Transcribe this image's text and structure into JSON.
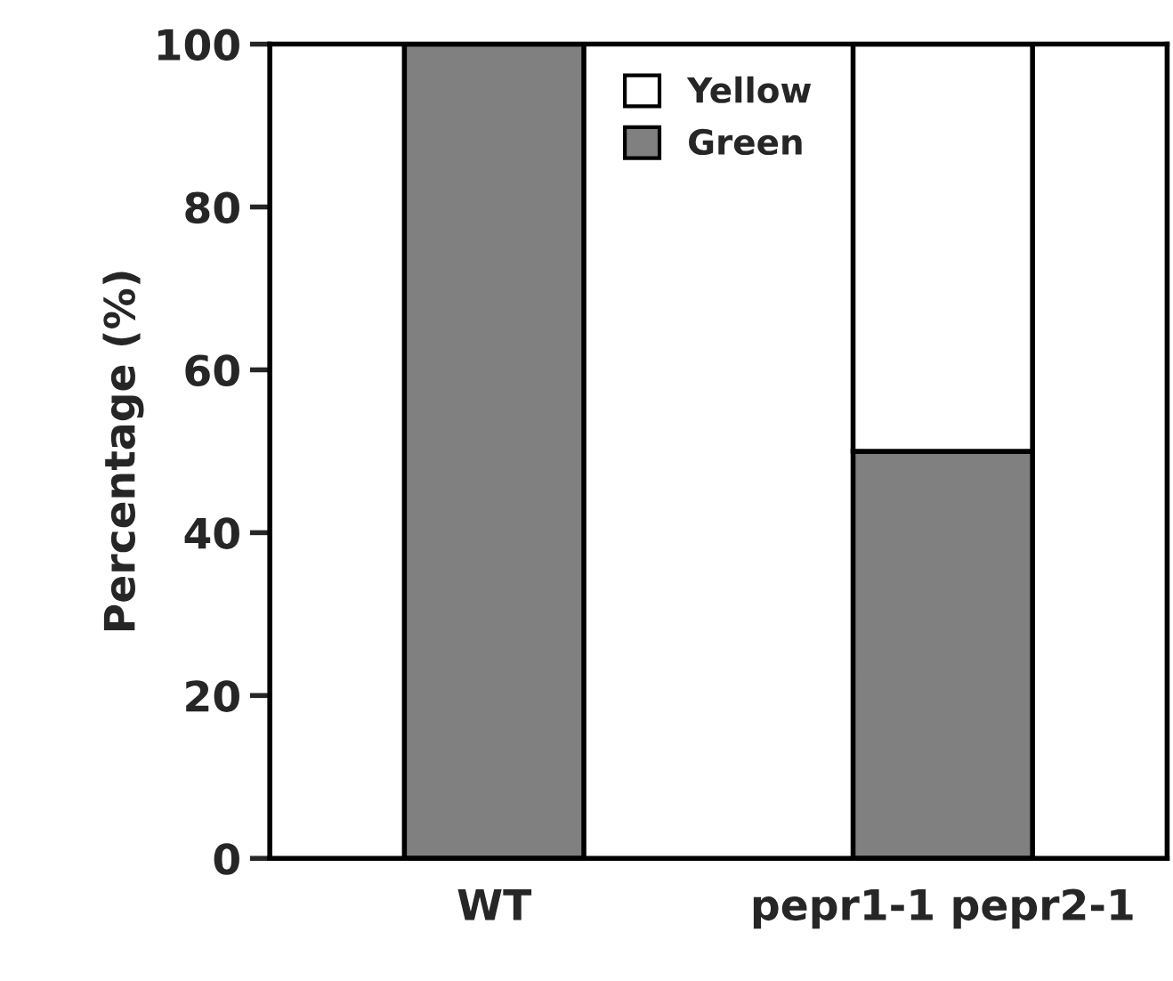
{
  "chart_data": {
    "type": "bar",
    "stacked": true,
    "ylabel": "Percentage (%)",
    "categories": [
      "WT",
      "pepr1-1 pepr2-1"
    ],
    "series": [
      {
        "name": "Green",
        "color": "#808080",
        "values": [
          100,
          50
        ]
      },
      {
        "name": "Yellow",
        "color": "#ffffff",
        "values": [
          0,
          50
        ]
      }
    ],
    "ylim": [
      0,
      100
    ],
    "yticks": [
      0,
      20,
      40,
      60,
      80,
      100
    ],
    "legend": "top",
    "grid": false
  }
}
